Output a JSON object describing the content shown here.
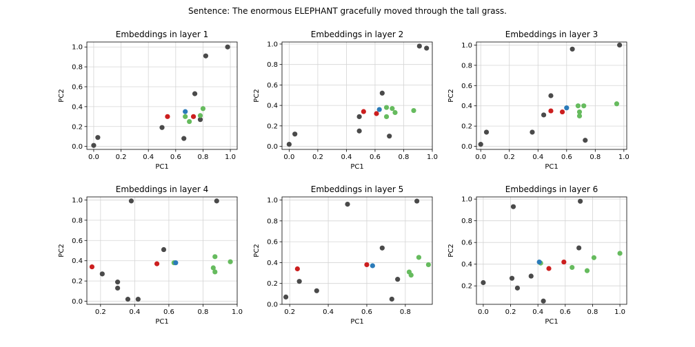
{
  "suptitle": "Sentence: The enormous ELEPHANT gracefully moved through the tall grass.",
  "colors": {
    "other": "#4a4a4a",
    "red": "#cc1f1f",
    "blue": "#2b7bb9",
    "green": "#66bb5e",
    "grid": "#d4d4d4",
    "spine": "#000000"
  },
  "chart_data": [
    {
      "type": "scatter",
      "title": "Embeddings in layer 1",
      "xlabel": "PC1",
      "ylabel": "PC2",
      "xlim": [
        -0.05,
        1.05
      ],
      "ylim": [
        -0.03,
        1.05
      ],
      "xticks": [
        0.0,
        0.2,
        0.4,
        0.6,
        0.8,
        1.0
      ],
      "xtick_labels": [
        "0.0",
        "0.2",
        "0.4",
        "0.6",
        "0.8",
        "1.0"
      ],
      "yticks": [
        0.0,
        0.2,
        0.4,
        0.6,
        0.8,
        1.0
      ],
      "ytick_labels": [
        "0.0",
        "0.2",
        "0.4",
        "0.6",
        "0.8",
        "1.0"
      ],
      "grid": true,
      "points": [
        {
          "x": 0.0,
          "y": 0.01,
          "c": "other"
        },
        {
          "x": 0.03,
          "y": 0.09,
          "c": "other"
        },
        {
          "x": 0.5,
          "y": 0.19,
          "c": "other"
        },
        {
          "x": 0.66,
          "y": 0.08,
          "c": "other"
        },
        {
          "x": 0.74,
          "y": 0.53,
          "c": "other"
        },
        {
          "x": 0.78,
          "y": 0.27,
          "c": "other"
        },
        {
          "x": 0.82,
          "y": 0.91,
          "c": "other"
        },
        {
          "x": 0.98,
          "y": 1.0,
          "c": "other"
        },
        {
          "x": 0.54,
          "y": 0.3,
          "c": "red"
        },
        {
          "x": 0.73,
          "y": 0.3,
          "c": "red"
        },
        {
          "x": 0.67,
          "y": 0.3,
          "c": "green"
        },
        {
          "x": 0.7,
          "y": 0.25,
          "c": "green"
        },
        {
          "x": 0.78,
          "y": 0.31,
          "c": "green"
        },
        {
          "x": 0.8,
          "y": 0.38,
          "c": "green"
        },
        {
          "x": 0.67,
          "y": 0.35,
          "c": "blue"
        }
      ]
    },
    {
      "type": "scatter",
      "title": "Embeddings in layer 2",
      "xlabel": "PC1",
      "ylabel": "PC2",
      "xlim": [
        -0.05,
        1.0
      ],
      "ylim": [
        -0.03,
        1.02
      ],
      "xticks": [
        0.0,
        0.2,
        0.4,
        0.6,
        0.8,
        1.0
      ],
      "xtick_labels": [
        "0.0",
        "0.2",
        "0.4",
        "0.6",
        "0.8",
        "1.0"
      ],
      "yticks": [
        0.0,
        0.2,
        0.4,
        0.6,
        0.8,
        1.0
      ],
      "ytick_labels": [
        "0.0",
        "0.2",
        "0.4",
        "0.6",
        "0.8",
        "1.0"
      ],
      "grid": true,
      "points": [
        {
          "x": 0.0,
          "y": 0.02,
          "c": "other"
        },
        {
          "x": 0.04,
          "y": 0.12,
          "c": "other"
        },
        {
          "x": 0.49,
          "y": 0.15,
          "c": "other"
        },
        {
          "x": 0.49,
          "y": 0.29,
          "c": "other"
        },
        {
          "x": 0.65,
          "y": 0.52,
          "c": "other"
        },
        {
          "x": 0.7,
          "y": 0.1,
          "c": "other"
        },
        {
          "x": 0.91,
          "y": 0.98,
          "c": "other"
        },
        {
          "x": 0.96,
          "y": 0.96,
          "c": "other"
        },
        {
          "x": 0.52,
          "y": 0.34,
          "c": "red"
        },
        {
          "x": 0.61,
          "y": 0.32,
          "c": "red"
        },
        {
          "x": 0.68,
          "y": 0.38,
          "c": "green"
        },
        {
          "x": 0.68,
          "y": 0.29,
          "c": "green"
        },
        {
          "x": 0.72,
          "y": 0.37,
          "c": "green"
        },
        {
          "x": 0.74,
          "y": 0.33,
          "c": "green"
        },
        {
          "x": 0.87,
          "y": 0.35,
          "c": "green"
        },
        {
          "x": 0.63,
          "y": 0.36,
          "c": "blue"
        }
      ]
    },
    {
      "type": "scatter",
      "title": "Embeddings in layer 3",
      "xlabel": "PC1",
      "ylabel": "PC2",
      "xlim": [
        -0.03,
        1.02
      ],
      "ylim": [
        -0.03,
        1.03
      ],
      "xticks": [
        0.0,
        0.2,
        0.4,
        0.6,
        0.8,
        1.0
      ],
      "xtick_labels": [
        "0.0",
        "0.2",
        "0.4",
        "0.6",
        "0.8",
        "1.0"
      ],
      "yticks": [
        0.0,
        0.2,
        0.4,
        0.6,
        0.8,
        1.0
      ],
      "ytick_labels": [
        "0.0",
        "0.2",
        "0.4",
        "0.6",
        "0.8",
        "1.0"
      ],
      "grid": true,
      "points": [
        {
          "x": 0.0,
          "y": 0.02,
          "c": "other"
        },
        {
          "x": 0.04,
          "y": 0.14,
          "c": "other"
        },
        {
          "x": 0.36,
          "y": 0.14,
          "c": "other"
        },
        {
          "x": 0.44,
          "y": 0.31,
          "c": "other"
        },
        {
          "x": 0.49,
          "y": 0.5,
          "c": "other"
        },
        {
          "x": 0.64,
          "y": 0.96,
          "c": "other"
        },
        {
          "x": 0.73,
          "y": 0.06,
          "c": "other"
        },
        {
          "x": 0.97,
          "y": 1.0,
          "c": "other"
        },
        {
          "x": 0.49,
          "y": 0.35,
          "c": "red"
        },
        {
          "x": 0.57,
          "y": 0.34,
          "c": "red"
        },
        {
          "x": 0.68,
          "y": 0.4,
          "c": "green"
        },
        {
          "x": 0.69,
          "y": 0.34,
          "c": "green"
        },
        {
          "x": 0.69,
          "y": 0.3,
          "c": "green"
        },
        {
          "x": 0.72,
          "y": 0.4,
          "c": "green"
        },
        {
          "x": 0.95,
          "y": 0.42,
          "c": "green"
        },
        {
          "x": 0.6,
          "y": 0.38,
          "c": "blue"
        }
      ]
    },
    {
      "type": "scatter",
      "title": "Embeddings in layer 4",
      "xlabel": "PC1",
      "ylabel": "PC2",
      "xlim": [
        0.12,
        1.0
      ],
      "ylim": [
        -0.03,
        1.03
      ],
      "xticks": [
        0.2,
        0.4,
        0.6,
        0.8,
        1.0
      ],
      "xtick_labels": [
        "0.2",
        "0.4",
        "0.6",
        "0.8",
        "1.0"
      ],
      "yticks": [
        0.0,
        0.2,
        0.4,
        0.6,
        0.8,
        1.0
      ],
      "ytick_labels": [
        "0.0",
        "0.2",
        "0.4",
        "0.6",
        "0.8",
        "1.0"
      ],
      "grid": true,
      "points": [
        {
          "x": 0.21,
          "y": 0.27,
          "c": "other"
        },
        {
          "x": 0.3,
          "y": 0.19,
          "c": "other"
        },
        {
          "x": 0.3,
          "y": 0.13,
          "c": "other"
        },
        {
          "x": 0.36,
          "y": 0.02,
          "c": "other"
        },
        {
          "x": 0.38,
          "y": 0.99,
          "c": "other"
        },
        {
          "x": 0.42,
          "y": 0.02,
          "c": "other"
        },
        {
          "x": 0.57,
          "y": 0.51,
          "c": "other"
        },
        {
          "x": 0.88,
          "y": 0.99,
          "c": "other"
        },
        {
          "x": 0.15,
          "y": 0.34,
          "c": "red"
        },
        {
          "x": 0.53,
          "y": 0.37,
          "c": "red"
        },
        {
          "x": 0.63,
          "y": 0.38,
          "c": "green"
        },
        {
          "x": 0.86,
          "y": 0.33,
          "c": "green"
        },
        {
          "x": 0.87,
          "y": 0.44,
          "c": "green"
        },
        {
          "x": 0.87,
          "y": 0.29,
          "c": "green"
        },
        {
          "x": 0.96,
          "y": 0.39,
          "c": "green"
        },
        {
          "x": 0.64,
          "y": 0.38,
          "c": "blue"
        }
      ]
    },
    {
      "type": "scatter",
      "title": "Embeddings in layer 5",
      "xlabel": "PC1",
      "ylabel": "PC2",
      "xlim": [
        0.16,
        0.94
      ],
      "ylim": [
        0.0,
        1.03
      ],
      "xticks": [
        0.2,
        0.4,
        0.6,
        0.8
      ],
      "xtick_labels": [
        "0.2",
        "0.4",
        "0.6",
        "0.8"
      ],
      "yticks": [
        0.0,
        0.2,
        0.4,
        0.6,
        0.8,
        1.0
      ],
      "ytick_labels": [
        "0.0",
        "0.2",
        "0.4",
        "0.6",
        "0.8",
        "1.0"
      ],
      "grid": true,
      "points": [
        {
          "x": 0.18,
          "y": 0.07,
          "c": "other"
        },
        {
          "x": 0.25,
          "y": 0.22,
          "c": "other"
        },
        {
          "x": 0.34,
          "y": 0.13,
          "c": "other"
        },
        {
          "x": 0.5,
          "y": 0.96,
          "c": "other"
        },
        {
          "x": 0.68,
          "y": 0.54,
          "c": "other"
        },
        {
          "x": 0.73,
          "y": 0.05,
          "c": "other"
        },
        {
          "x": 0.76,
          "y": 0.24,
          "c": "other"
        },
        {
          "x": 0.86,
          "y": 0.99,
          "c": "other"
        },
        {
          "x": 0.24,
          "y": 0.34,
          "c": "red"
        },
        {
          "x": 0.6,
          "y": 0.38,
          "c": "red"
        },
        {
          "x": 0.82,
          "y": 0.31,
          "c": "green"
        },
        {
          "x": 0.83,
          "y": 0.28,
          "c": "green"
        },
        {
          "x": 0.87,
          "y": 0.45,
          "c": "green"
        },
        {
          "x": 0.92,
          "y": 0.38,
          "c": "green"
        },
        {
          "x": 0.63,
          "y": 0.37,
          "c": "blue"
        }
      ]
    },
    {
      "type": "scatter",
      "title": "Embeddings in layer 6",
      "xlabel": "PC1",
      "ylabel": "PC2",
      "xlim": [
        -0.05,
        1.05
      ],
      "ylim": [
        0.03,
        1.02
      ],
      "xticks": [
        0.0,
        0.2,
        0.4,
        0.6,
        0.8,
        1.0
      ],
      "xtick_labels": [
        "0.0",
        "0.2",
        "0.4",
        "0.6",
        "0.8",
        "1.0"
      ],
      "yticks": [
        0.2,
        0.4,
        0.6,
        0.8,
        1.0
      ],
      "ytick_labels": [
        "0.2",
        "0.4",
        "0.6",
        "0.8",
        "1.0"
      ],
      "grid": true,
      "points": [
        {
          "x": 0.0,
          "y": 0.23,
          "c": "other"
        },
        {
          "x": 0.21,
          "y": 0.27,
          "c": "other"
        },
        {
          "x": 0.22,
          "y": 0.93,
          "c": "other"
        },
        {
          "x": 0.25,
          "y": 0.18,
          "c": "other"
        },
        {
          "x": 0.35,
          "y": 0.29,
          "c": "other"
        },
        {
          "x": 0.44,
          "y": 0.06,
          "c": "other"
        },
        {
          "x": 0.7,
          "y": 0.55,
          "c": "other"
        },
        {
          "x": 0.71,
          "y": 0.98,
          "c": "other"
        },
        {
          "x": 0.48,
          "y": 0.36,
          "c": "red"
        },
        {
          "x": 0.59,
          "y": 0.42,
          "c": "red"
        },
        {
          "x": 0.42,
          "y": 0.41,
          "c": "green"
        },
        {
          "x": 0.65,
          "y": 0.37,
          "c": "green"
        },
        {
          "x": 0.76,
          "y": 0.34,
          "c": "green"
        },
        {
          "x": 0.81,
          "y": 0.46,
          "c": "green"
        },
        {
          "x": 1.0,
          "y": 0.5,
          "c": "green"
        },
        {
          "x": 0.41,
          "y": 0.42,
          "c": "blue"
        }
      ]
    }
  ]
}
